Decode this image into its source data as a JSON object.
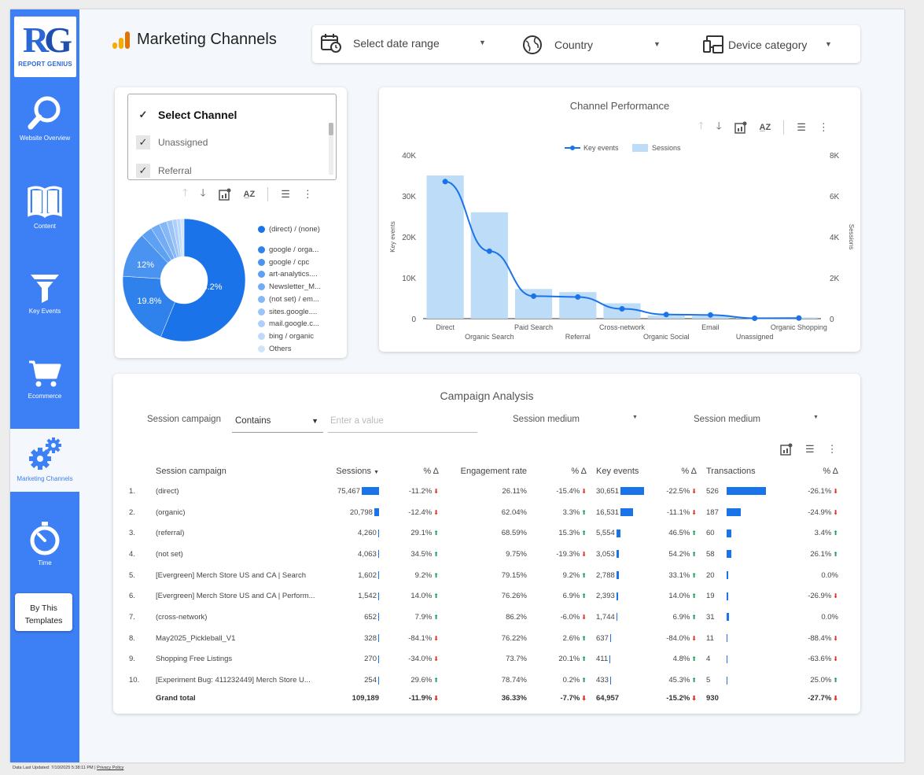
{
  "brand": {
    "logo_text": "RG",
    "logo_sub": "REPORT GENIUS"
  },
  "nav": [
    {
      "label": "Website Overview",
      "icon": "search-icon"
    },
    {
      "label": "Content",
      "icon": "book-icon"
    },
    {
      "label": "Key Events",
      "icon": "funnel-icon"
    },
    {
      "label": "Ecommerce",
      "icon": "cart-icon"
    },
    {
      "label": "Marketing Channels",
      "icon": "gears-icon",
      "active": true
    },
    {
      "label": "Time",
      "icon": "stopwatch-icon"
    }
  ],
  "by_templates": "By This Templates",
  "header": {
    "title": "Marketing Channels"
  },
  "filters": {
    "date": "Select date range",
    "country": "Country",
    "device": "Device category"
  },
  "channel_filter": {
    "header": "Select Channel",
    "options": [
      "Unassigned",
      "Referral"
    ]
  },
  "donut": {
    "labels": [
      "56.2%",
      "19.8%",
      "12%"
    ],
    "slices": [
      {
        "name": "(direct) / (none)",
        "value": 56.2,
        "color": "#1a73e8"
      },
      {
        "name": "google / orga...",
        "value": 19.8,
        "color": "#2f82ec"
      },
      {
        "name": "google / cpc",
        "value": 12.0,
        "color": "#4a93f0"
      },
      {
        "name": "art-analytics....",
        "value": 3.0,
        "color": "#5ea0f2"
      },
      {
        "name": "Newsletter_M...",
        "value": 2.4,
        "color": "#73acf4"
      },
      {
        "name": "(not set) / em...",
        "value": 2.0,
        "color": "#86b8f6"
      },
      {
        "name": "sites.google....",
        "value": 1.5,
        "color": "#9ac4f7"
      },
      {
        "name": "mail.google.c...",
        "value": 1.2,
        "color": "#adcff9"
      },
      {
        "name": "bing / organic",
        "value": 1.0,
        "color": "#bfd9fa"
      },
      {
        "name": "Others",
        "value": 0.9,
        "color": "#d2e4fb"
      }
    ]
  },
  "chart_data": {
    "type": "bar",
    "title": "Channel Performance",
    "categories": [
      "Direct",
      "Organic Search",
      "Paid Search",
      "Referral",
      "Cross-network",
      "Organic Social",
      "Email",
      "Unassigned",
      "Organic Shopping"
    ],
    "series": [
      {
        "name": "Sessions",
        "type": "bar",
        "axis": "right",
        "color": "#bcdcf8",
        "values": [
          7000,
          5200,
          1450,
          1300,
          750,
          150,
          130,
          60,
          60
        ]
      },
      {
        "name": "Key events",
        "type": "line",
        "axis": "left",
        "color": "#1a73e8",
        "values": [
          33500,
          16500,
          5500,
          5300,
          2400,
          1000,
          900,
          100,
          150
        ]
      }
    ],
    "ylabel": "Key events",
    "y2label": "Sessions",
    "yticks": [
      "40K",
      "30K",
      "20K",
      "10K",
      "0"
    ],
    "y2ticks": [
      "8K",
      "6K",
      "4K",
      "2K",
      "0"
    ],
    "ylim": [
      0,
      40000
    ],
    "y2lim": [
      0,
      8000
    ],
    "legend": "top-center"
  },
  "campaign": {
    "title": "Campaign Analysis",
    "controls": {
      "session_campaign": "Session campaign",
      "match": "Contains",
      "placeholder": "Enter a value",
      "medium1": "Session medium",
      "medium2": "Session medium"
    },
    "columns": [
      "Session campaign",
      "Sessions",
      "% Δ",
      "Engagement rate",
      "% Δ",
      "Key events",
      "% Δ",
      "Transactions",
      "% Δ"
    ],
    "rows": [
      {
        "n": "1.",
        "name": "(direct)",
        "sessions": "75,467",
        "sb": 1.0,
        "sd": "-11.2%",
        "sdir": "down",
        "eng": "26.11%",
        "ed": "-15.4%",
        "edir": "down",
        "ke": "30,651",
        "kb": 1.0,
        "kd": "-22.5%",
        "kdir": "down",
        "tr": "526",
        "tb": 1.0,
        "td": "-26.1%",
        "tdir": "down"
      },
      {
        "n": "2.",
        "name": "(organic)",
        "sessions": "20,798",
        "sb": 0.276,
        "sd": "-12.4%",
        "sdir": "down",
        "eng": "62.04%",
        "ed": "3.3%",
        "edir": "up",
        "ke": "16,531",
        "kb": 0.54,
        "kd": "-11.1%",
        "kdir": "down",
        "tr": "187",
        "tb": 0.356,
        "td": "-24.9%",
        "tdir": "down"
      },
      {
        "n": "3.",
        "name": "(referral)",
        "sessions": "4,260",
        "sb": 0.056,
        "sd": "29.1%",
        "sdir": "up",
        "eng": "68.59%",
        "ed": "15.3%",
        "edir": "up",
        "ke": "5,554",
        "kb": 0.18,
        "kd": "46.5%",
        "kdir": "up",
        "tr": "60",
        "tb": 0.114,
        "td": "3.4%",
        "tdir": "up"
      },
      {
        "n": "4.",
        "name": "(not set)",
        "sessions": "4,063",
        "sb": 0.054,
        "sd": "34.5%",
        "sdir": "up",
        "eng": "9.75%",
        "ed": "-19.3%",
        "edir": "down",
        "ke": "3,053",
        "kb": 0.1,
        "kd": "54.2%",
        "kdir": "up",
        "tr": "58",
        "tb": 0.11,
        "td": "26.1%",
        "tdir": "up"
      },
      {
        "n": "5.",
        "name": "[Evergreen] Merch Store US and CA | Search",
        "sessions": "1,602",
        "sb": 0.021,
        "sd": "9.2%",
        "sdir": "up",
        "eng": "79.15%",
        "ed": "9.2%",
        "edir": "up",
        "ke": "2,788",
        "kb": 0.091,
        "kd": "33.1%",
        "kdir": "up",
        "tr": "20",
        "tb": 0.038,
        "td": "0.0%",
        "tdir": "none"
      },
      {
        "n": "6.",
        "name": "[Evergreen] Merch Store US and CA | Perform...",
        "sessions": "1,542",
        "sb": 0.02,
        "sd": "14.0%",
        "sdir": "up",
        "eng": "76.26%",
        "ed": "6.9%",
        "edir": "up",
        "ke": "2,393",
        "kb": 0.078,
        "kd": "14.0%",
        "kdir": "up",
        "tr": "19",
        "tb": 0.036,
        "td": "-26.9%",
        "tdir": "down"
      },
      {
        "n": "7.",
        "name": "(cross-network)",
        "sessions": "652",
        "sb": 0.009,
        "sd": "7.9%",
        "sdir": "up",
        "eng": "86.2%",
        "ed": "-6.0%",
        "edir": "down",
        "ke": "1,744",
        "kb": 0.057,
        "kd": "6.9%",
        "kdir": "up",
        "tr": "31",
        "tb": 0.059,
        "td": "0.0%",
        "tdir": "none"
      },
      {
        "n": "8.",
        "name": "May2025_Pickleball_V1",
        "sessions": "328",
        "sb": 0.004,
        "sd": "-84.1%",
        "sdir": "down",
        "eng": "76.22%",
        "ed": "2.6%",
        "edir": "up",
        "ke": "637",
        "kb": 0.021,
        "kd": "-84.0%",
        "kdir": "down",
        "tr": "11",
        "tb": 0.021,
        "td": "-88.4%",
        "tdir": "down"
      },
      {
        "n": "9.",
        "name": "Shopping Free Listings",
        "sessions": "270",
        "sb": 0.004,
        "sd": "-34.0%",
        "sdir": "down",
        "eng": "73.7%",
        "ed": "20.1%",
        "edir": "up",
        "ke": "411",
        "kb": 0.013,
        "kd": "4.8%",
        "kdir": "up",
        "tr": "4",
        "tb": 0.008,
        "td": "-63.6%",
        "tdir": "down"
      },
      {
        "n": "10.",
        "name": "[Experiment Bug: 411232449] Merch Store U...",
        "sessions": "254",
        "sb": 0.003,
        "sd": "29.6%",
        "sdir": "up",
        "eng": "78.74%",
        "ed": "0.2%",
        "edir": "up",
        "ke": "433",
        "kb": 0.014,
        "kd": "45.3%",
        "kdir": "up",
        "tr": "5",
        "tb": 0.01,
        "td": "25.0%",
        "tdir": "up"
      }
    ],
    "total": {
      "label": "Grand total",
      "sessions": "109,189",
      "sd": "-11.9%",
      "eng": "36.33%",
      "ed": "-7.7%",
      "ke": "64,957",
      "kd": "-15.2%",
      "tr": "930",
      "td": "-27.7%"
    }
  },
  "footer": {
    "updated": "Data Last Updated: 7/10/2025 5:38:11 PM",
    "privacy": "Privacy Policy"
  },
  "colors": {
    "sidebar": "#3d7ff5",
    "accent": "#1a73e8",
    "light_bar": "#bcdcf8",
    "up": "#1e9e5a",
    "down": "#d93025"
  }
}
